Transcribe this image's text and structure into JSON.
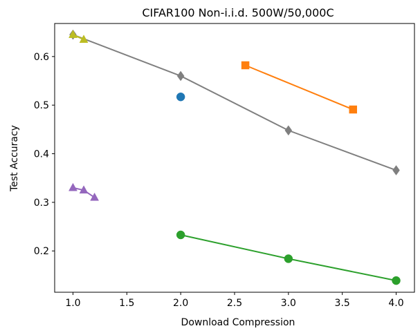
{
  "chart_data": {
    "type": "line",
    "title": "CIFAR100 Non-i.i.d. 500W/50,000C",
    "xlabel": "Download Compression",
    "ylabel": "Test Accuracy",
    "xlim": [
      0.83,
      4.17
    ],
    "ylim": [
      0.115,
      0.668
    ],
    "xticks": [
      "1.0",
      "1.5",
      "2.0",
      "2.5",
      "3.0",
      "3.5",
      "4.0"
    ],
    "yticks": [
      "0.2",
      "0.3",
      "0.4",
      "0.5",
      "0.6"
    ],
    "grid": false,
    "series": [
      {
        "color": "#1f77b4",
        "marker": "circle",
        "line": false,
        "points": [
          [
            2.0,
            0.517
          ]
        ]
      },
      {
        "color": "#ff7f0e",
        "marker": "square",
        "line": true,
        "points": [
          [
            2.6,
            0.582
          ],
          [
            3.6,
            0.491
          ]
        ]
      },
      {
        "color": "#2ca02c",
        "marker": "circle",
        "line": true,
        "points": [
          [
            2.0,
            0.233
          ],
          [
            3.0,
            0.184
          ],
          [
            4.0,
            0.139
          ]
        ]
      },
      {
        "color": "#9467bd",
        "marker": "triangle",
        "line": true,
        "points": [
          [
            1.0,
            0.33
          ],
          [
            1.1,
            0.325
          ],
          [
            1.2,
            0.31
          ]
        ]
      },
      {
        "color": "#7f7f7f",
        "marker": "diamond",
        "line": true,
        "points": [
          [
            1.0,
            0.645
          ],
          [
            2.0,
            0.56
          ],
          [
            3.0,
            0.448
          ],
          [
            4.0,
            0.366
          ]
        ]
      },
      {
        "color": "#bcbd22",
        "marker": "triangle",
        "line": true,
        "points": [
          [
            1.0,
            0.645
          ],
          [
            1.1,
            0.635
          ]
        ]
      }
    ]
  }
}
